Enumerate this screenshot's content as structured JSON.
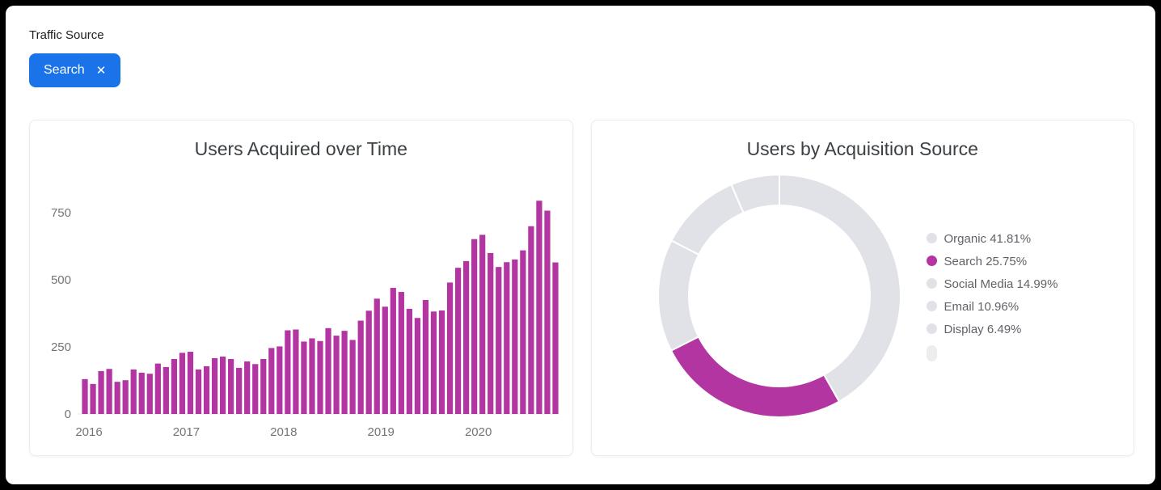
{
  "filter_bar": {
    "label": "Traffic Source",
    "chip": {
      "label": "Search",
      "close_icon": "✕"
    }
  },
  "colors": {
    "chip_bg": "#1a73e8",
    "accent_magenta": "#b335a2",
    "neutral_gray": "#e1e2e7",
    "axis_text": "#757575",
    "legend_text": "#5f6368"
  },
  "chart_data": [
    {
      "type": "bar",
      "title": "Users Acquired over Time",
      "xlabel": "",
      "ylabel": "",
      "y_ticks": [
        0,
        250,
        500,
        750
      ],
      "ylim": [
        0,
        850
      ],
      "grid": false,
      "bar_color": "#b335a2",
      "x_axis": {
        "tick_labels": [
          "2016",
          "2017",
          "2018",
          "2019",
          "2020"
        ],
        "tick_indices": [
          0,
          12,
          24,
          36,
          48
        ]
      },
      "values": [
        130,
        112,
        160,
        168,
        120,
        126,
        166,
        154,
        150,
        188,
        175,
        205,
        228,
        232,
        166,
        178,
        208,
        214,
        205,
        172,
        196,
        186,
        205,
        246,
        252,
        312,
        315,
        270,
        282,
        272,
        320,
        292,
        310,
        276,
        348,
        385,
        430,
        400,
        470,
        455,
        392,
        358,
        425,
        382,
        386,
        490,
        545,
        570,
        652,
        668,
        600,
        548,
        566,
        576,
        610,
        700,
        795,
        758,
        565
      ]
    },
    {
      "type": "pie",
      "title": "Users by Acquisition Source",
      "donut": true,
      "legend_position": "right",
      "slices": [
        {
          "label": "Organic",
          "pct": 41.81,
          "color": "#e1e2e7",
          "legend": "Organic 41.81%"
        },
        {
          "label": "Search",
          "pct": 25.75,
          "color": "#b335a2",
          "legend": "Search 25.75%"
        },
        {
          "label": "Social Media",
          "pct": 14.99,
          "color": "#e1e2e7",
          "legend": "Social Media 14.99%"
        },
        {
          "label": "Email",
          "pct": 10.96,
          "color": "#e1e2e7",
          "legend": "Email 10.96%"
        },
        {
          "label": "Display",
          "pct": 6.49,
          "color": "#e1e2e7",
          "legend": "Display 6.49%"
        }
      ],
      "legend_overflow_indicator": true
    }
  ]
}
